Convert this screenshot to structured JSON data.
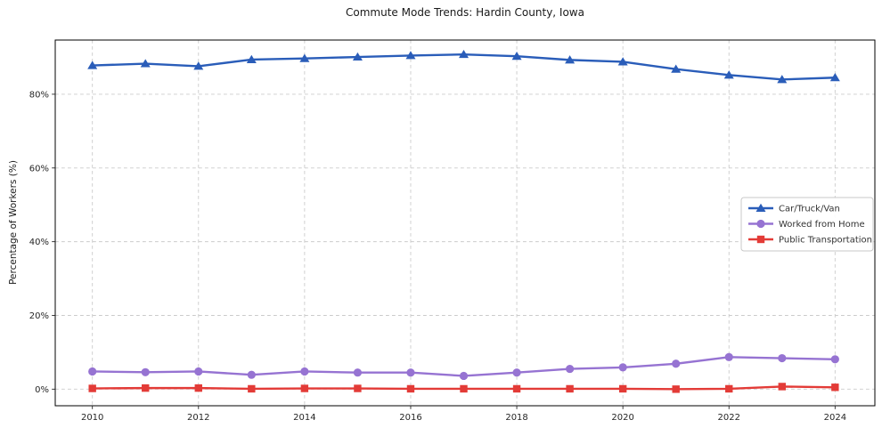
{
  "chart_data": {
    "type": "line",
    "title": "Commute Mode Trends: Hardin County, Iowa",
    "xlabel": "",
    "ylabel": "Percentage of Workers (%)",
    "x": [
      2010,
      2011,
      2012,
      2013,
      2014,
      2015,
      2016,
      2017,
      2018,
      2019,
      2020,
      2021,
      2022,
      2023,
      2024
    ],
    "x_tick_years": [
      2010,
      2012,
      2014,
      2016,
      2018,
      2020,
      2022,
      2024
    ],
    "x_tick_labels": [
      "2010",
      "2012",
      "2014",
      "2016",
      "2018",
      "2020",
      "2022",
      "2024"
    ],
    "y_ticks": [
      0,
      20,
      40,
      60,
      80
    ],
    "y_tick_labels": [
      "0%",
      "20%",
      "40%",
      "60%",
      "80%"
    ],
    "xlim": [
      2009.3,
      2024.75
    ],
    "ylim": [
      -4.5,
      94.7
    ],
    "grid": true,
    "grid_style": "dashed",
    "grid_color": "#cbcbcb",
    "legend_position": "center right",
    "series": [
      {
        "name": "Car/Truck/Van",
        "color": "#2a5db9",
        "marker": "triangle",
        "values": [
          87.8,
          88.3,
          87.6,
          89.4,
          89.7,
          90.1,
          90.5,
          90.8,
          90.3,
          89.3,
          88.8,
          86.8,
          85.2,
          84.0,
          84.5
        ]
      },
      {
        "name": "Worked from Home",
        "color": "#9673d2",
        "marker": "circle",
        "values": [
          4.8,
          4.6,
          4.8,
          3.9,
          4.8,
          4.5,
          4.5,
          3.6,
          4.5,
          5.5,
          5.9,
          6.9,
          8.7,
          8.4,
          8.1
        ]
      },
      {
        "name": "Public Transportation",
        "color": "#e33b37",
        "marker": "square",
        "values": [
          0.2,
          0.3,
          0.3,
          0.1,
          0.2,
          0.2,
          0.1,
          0.1,
          0.1,
          0.1,
          0.1,
          0.0,
          0.1,
          0.7,
          0.5
        ]
      }
    ]
  }
}
